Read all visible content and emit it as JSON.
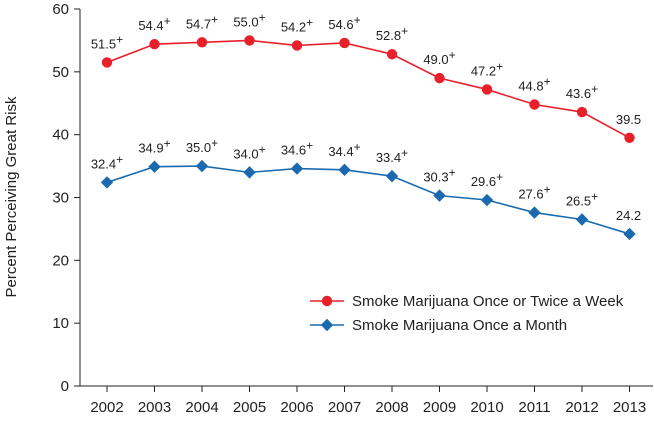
{
  "chart_data": {
    "type": "line",
    "title": "",
    "xlabel": "",
    "ylabel": "Percent Perceiving Great Risk",
    "ylim": [
      0,
      60
    ],
    "yticks": [
      0,
      10,
      20,
      30,
      40,
      50,
      60
    ],
    "grid": false,
    "legend_position": "bottom-right",
    "categories": [
      "2002",
      "2003",
      "2004",
      "2005",
      "2006",
      "2007",
      "2008",
      "2009",
      "2010",
      "2011",
      "2012",
      "2013"
    ],
    "series": [
      {
        "name": "Smoke Marijuana Once or Twice a Week",
        "color": "#e8202a",
        "marker": "circle",
        "values": [
          51.5,
          54.4,
          54.7,
          55.0,
          54.2,
          54.6,
          52.8,
          49.0,
          47.2,
          44.8,
          43.6,
          39.5
        ],
        "labels": [
          "51.5",
          "54.4",
          "54.7",
          "55.0",
          "54.2",
          "54.6",
          "52.8",
          "49.0",
          "47.2",
          "44.8",
          "43.6",
          "39.5"
        ],
        "significant": [
          true,
          true,
          true,
          true,
          true,
          true,
          true,
          true,
          true,
          true,
          true,
          false
        ]
      },
      {
        "name": "Smoke Marijuana Once a Month",
        "color": "#1b6aaf",
        "marker": "diamond",
        "values": [
          32.4,
          34.9,
          35.0,
          34.0,
          34.6,
          34.4,
          33.4,
          30.3,
          29.6,
          27.6,
          26.5,
          24.2
        ],
        "labels": [
          "32.4",
          "34.9",
          "35.0",
          "34.0",
          "34.6",
          "34.4",
          "33.4",
          "30.3",
          "29.6",
          "27.6",
          "26.5",
          "24.2"
        ],
        "significant": [
          true,
          true,
          true,
          true,
          true,
          true,
          true,
          true,
          true,
          true,
          true,
          false
        ]
      }
    ],
    "significance_marker": "+"
  }
}
